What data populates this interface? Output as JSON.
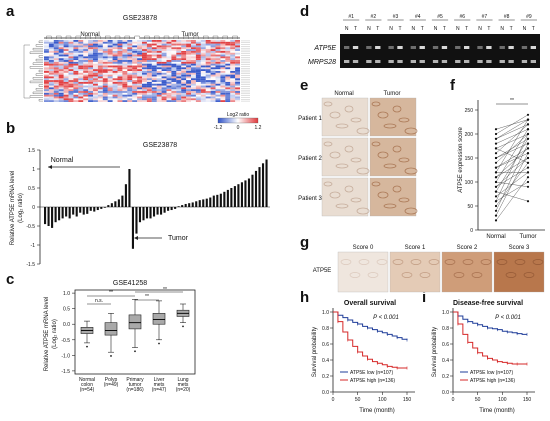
{
  "figure": {
    "panel_letters": [
      "a",
      "b",
      "c",
      "d",
      "e",
      "f",
      "g",
      "h",
      "i"
    ],
    "a": {
      "title": "GSE23878",
      "normal_label": "Normal",
      "tumor_label": "Tumor",
      "legend_title": "Log2 ratio",
      "legend_ticks": [
        "-1.2",
        "0",
        "1.2"
      ]
    },
    "b": {
      "title": "GSE23878",
      "ylabel_1": "Relative ATP5E mRNA level",
      "ylabel_2": "(Log₂ ratio)",
      "normal_label": "Normal",
      "tumor_label": "Tumor",
      "yticks": [
        "1.5",
        "1",
        "0.5",
        "0",
        "-0.5",
        "-1",
        "-1.5"
      ]
    },
    "c": {
      "title": "GSE41258",
      "ylabel_1": "Relative ATP5E mRNA level",
      "ylabel_2": "(Log₂ ratio)",
      "ns": "n.s.",
      "stars": "**",
      "yticks": [
        "1.0",
        "0.5",
        "0.0",
        "-0.5",
        "-1.0",
        "-1.5"
      ]
    },
    "d": {
      "lanes": [
        "#1",
        "#2",
        "#3",
        "#4",
        "#5",
        "#6",
        "#7",
        "#8",
        "#9"
      ],
      "gene1": "ATP5E",
      "gene2": "MRPS28",
      "n": "N",
      "t": "T"
    },
    "e": {
      "col1": "Normal",
      "col2": "Tumor",
      "rows": [
        "Patient 1",
        "Patient 2",
        "Patient 3"
      ]
    },
    "f": {
      "ylabel": "ATP5E expression score",
      "xlabels": [
        "Normal",
        "Tumor"
      ],
      "stars": "**",
      "yticks": [
        "250",
        "200",
        "150",
        "100",
        "50",
        "0"
      ]
    },
    "g": {
      "row_label": "ATP5E",
      "scores": [
        "Score 0",
        "Score 1",
        "Score 2",
        "Score 3"
      ]
    },
    "h": {
      "title": "Overall survival",
      "pval": "P < 0.001",
      "ylabel": "Survival probability",
      "xlabel": "Time (month)",
      "legend_low": "ATP5E low (n=107)",
      "legend_high": "ATP5E high (n=136)",
      "yticks": [
        "1.0",
        "0.8",
        "0.6",
        "0.4",
        "0.2",
        "0.0"
      ],
      "xticks": [
        "0",
        "50",
        "100",
        "150"
      ]
    },
    "i": {
      "title": "Disease-free survival",
      "pval": "P < 0.001",
      "ylabel": "Survival probability",
      "xlabel": "Time (month)",
      "legend_low": "ATP5E low (n=107)",
      "legend_high": "ATP5E high (n=136)",
      "yticks": [
        "1.0",
        "0.8",
        "0.6",
        "0.4",
        "0.2",
        "0.0"
      ],
      "xticks": [
        "0",
        "50",
        "100",
        "150"
      ]
    }
  },
  "colors": {
    "red": "#d62828",
    "blue": "#1f3d99",
    "heat_red": "#e0383b",
    "heat_blue": "#2f52c8"
  },
  "chart_data": [
    {
      "type": "bar",
      "panel": "b",
      "title": "GSE23878",
      "ylabel": "Relative ATP5E mRNA level (Log₂ ratio)",
      "ylim": [
        -1.5,
        1.5
      ],
      "series": [
        {
          "name": "Normal",
          "values": [
            -0.45,
            -0.5,
            -0.55,
            -0.4,
            -0.35,
            -0.3,
            -0.25,
            -0.3,
            -0.2,
            -0.25,
            -0.15,
            -0.2,
            -0.18,
            -0.1,
            -0.12,
            -0.08,
            -0.05,
            -0.02,
            0.05,
            0.1,
            0.15,
            0.2,
            0.3,
            0.6,
            1.0
          ]
        },
        {
          "name": "Tumor",
          "values": [
            -1.1,
            -0.7,
            -0.4,
            -0.35,
            -0.3,
            -0.3,
            -0.25,
            -0.2,
            -0.2,
            -0.15,
            -0.1,
            -0.08,
            -0.05,
            0.02,
            0.05,
            0.08,
            0.1,
            0.12,
            0.15,
            0.18,
            0.2,
            0.22,
            0.25,
            0.3,
            0.32,
            0.35,
            0.4,
            0.45,
            0.5,
            0.55,
            0.6,
            0.65,
            0.7,
            0.75,
            0.85,
            0.95,
            1.05,
            1.15,
            1.25
          ]
        }
      ]
    },
    {
      "type": "box",
      "panel": "c",
      "title": "GSE41258",
      "ylim": [
        -1.6,
        1.1
      ],
      "categories": [
        "Normal colon (n=54)",
        "Polyp (n=49)",
        "Primary tumor (n=186)",
        "Liver mets (n=47)",
        "Lung mets (n=20)"
      ],
      "series": [
        {
          "name": "Normal colon",
          "q1": -0.3,
          "median": -0.2,
          "q3": -0.1,
          "whisker_low": -0.6,
          "whisker_high": 0.1
        },
        {
          "name": "Polyp",
          "q1": -0.35,
          "median": -0.2,
          "q3": 0.05,
          "whisker_low": -0.9,
          "whisker_high": 0.35
        },
        {
          "name": "Primary tumor",
          "q1": -0.15,
          "median": 0.05,
          "q3": 0.3,
          "whisker_low": -0.75,
          "whisker_high": 0.8
        },
        {
          "name": "Liver mets",
          "q1": 0.0,
          "median": 0.15,
          "q3": 0.35,
          "whisker_low": -0.5,
          "whisker_high": 0.75
        },
        {
          "name": "Lung mets",
          "q1": 0.25,
          "median": 0.35,
          "q3": 0.45,
          "whisker_low": 0.05,
          "whisker_high": 0.65
        }
      ]
    },
    {
      "type": "line",
      "panel": "f",
      "ylabel": "ATP5E expression score",
      "ylim": [
        0,
        250
      ],
      "categories": [
        "Normal",
        "Tumor"
      ],
      "series": [
        {
          "name": "pairs",
          "pairs": [
            [
              20,
              110
            ],
            [
              30,
              160
            ],
            [
              40,
              180
            ],
            [
              50,
              140
            ],
            [
              60,
              200
            ],
            [
              70,
              120
            ],
            [
              80,
              190
            ],
            [
              90,
              150
            ],
            [
              100,
              210
            ],
            [
              110,
              170
            ],
            [
              120,
              230
            ],
            [
              130,
              160
            ],
            [
              140,
              200
            ],
            [
              150,
              180
            ],
            [
              160,
              220
            ],
            [
              170,
              140
            ],
            [
              180,
              210
            ],
            [
              190,
              230
            ],
            [
              200,
              240
            ],
            [
              60,
              100
            ],
            [
              90,
              130
            ],
            [
              110,
              150
            ],
            [
              130,
              170
            ],
            [
              150,
              190
            ],
            [
              170,
              200
            ],
            [
              190,
              220
            ],
            [
              210,
              230
            ],
            [
              120,
              120
            ],
            [
              100,
              90
            ],
            [
              80,
              60
            ]
          ]
        }
      ]
    },
    {
      "type": "line",
      "panel": "h",
      "title": "Overall survival",
      "xlim": [
        0,
        150
      ],
      "ylim": [
        0,
        1.0
      ],
      "series": [
        {
          "name": "ATP5E low (n=107)",
          "x": [
            0,
            10,
            20,
            30,
            40,
            50,
            60,
            70,
            80,
            90,
            100,
            110,
            120,
            130,
            140,
            150
          ],
          "y": [
            1.0,
            0.96,
            0.93,
            0.9,
            0.87,
            0.85,
            0.82,
            0.8,
            0.78,
            0.76,
            0.74,
            0.72,
            0.7,
            0.68,
            0.66,
            0.65
          ]
        },
        {
          "name": "ATP5E high (n=136)",
          "x": [
            0,
            10,
            20,
            30,
            40,
            50,
            60,
            70,
            80,
            90,
            100,
            110,
            120,
            130,
            140,
            150
          ],
          "y": [
            1.0,
            0.88,
            0.75,
            0.65,
            0.57,
            0.5,
            0.45,
            0.41,
            0.38,
            0.36,
            0.34,
            0.32,
            0.31,
            0.3,
            0.3,
            0.3
          ]
        }
      ]
    },
    {
      "type": "line",
      "panel": "i",
      "title": "Disease-free survival",
      "xlim": [
        0,
        150
      ],
      "ylim": [
        0,
        1.0
      ],
      "series": [
        {
          "name": "ATP5E low (n=107)",
          "x": [
            0,
            10,
            20,
            30,
            40,
            50,
            60,
            70,
            80,
            90,
            100,
            110,
            120,
            130,
            140,
            150
          ],
          "y": [
            1.0,
            0.95,
            0.91,
            0.88,
            0.86,
            0.84,
            0.82,
            0.8,
            0.79,
            0.78,
            0.76,
            0.75,
            0.74,
            0.73,
            0.72,
            0.72
          ]
        },
        {
          "name": "ATP5E high (n=136)",
          "x": [
            0,
            10,
            20,
            30,
            40,
            50,
            60,
            70,
            80,
            90,
            100,
            110,
            120,
            130,
            140,
            150
          ],
          "y": [
            1.0,
            0.85,
            0.72,
            0.62,
            0.55,
            0.49,
            0.45,
            0.42,
            0.4,
            0.38,
            0.37,
            0.36,
            0.35,
            0.35,
            0.35,
            0.35
          ]
        }
      ]
    }
  ]
}
